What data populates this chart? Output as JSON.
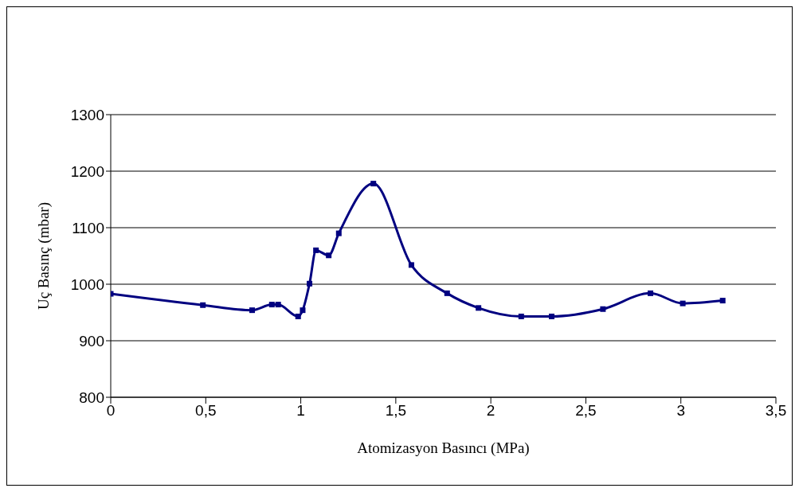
{
  "chart_data": {
    "type": "line",
    "xlabel": "Atomizasyon Basıncı (MPa)",
    "ylabel": "Uç  Basınç (mbar)",
    "x": [
      0,
      0.485,
      0.744,
      0.848,
      0.881,
      0.986,
      1.01,
      1.046,
      1.08,
      1.147,
      1.2,
      1.382,
      1.582,
      1.77,
      1.935,
      2.16,
      2.32,
      2.59,
      2.84,
      3.01,
      3.22
    ],
    "series": [
      {
        "color": "#000080",
        "values": [
          983,
          963,
          954,
          964,
          964,
          943,
          954,
          1001,
          1060,
          1051,
          1090,
          1178,
          1034,
          984,
          958,
          943,
          943,
          956,
          984,
          966,
          971
        ]
      }
    ],
    "xlim": [
      0,
      3.5
    ],
    "xticks": [
      {
        "value": 0,
        "label": "0"
      },
      {
        "value": 0.5,
        "label": "0,5"
      },
      {
        "value": 1,
        "label": "1"
      },
      {
        "value": 1.5,
        "label": "1,5"
      },
      {
        "value": 2,
        "label": "2"
      },
      {
        "value": 2.5,
        "label": "2,5"
      },
      {
        "value": 3,
        "label": "3"
      },
      {
        "value": 3.5,
        "label": "3,5"
      }
    ],
    "ylim": [
      800,
      1300
    ],
    "yticks": [
      800,
      900,
      1000,
      1100,
      1200,
      1300
    ],
    "grid": "y",
    "legend": false,
    "marker": "square",
    "line_style": "solid"
  }
}
